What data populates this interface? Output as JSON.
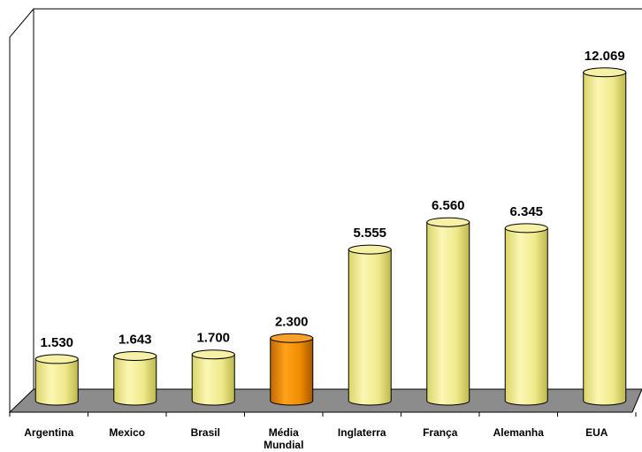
{
  "chart_data": {
    "type": "bar",
    "categories": [
      [
        "Argentina"
      ],
      [
        "Mexico"
      ],
      [
        "Brasil"
      ],
      [
        "Média",
        "Mundial"
      ],
      [
        "Inglaterra"
      ],
      [
        "França"
      ],
      [
        "Alemanha"
      ],
      [
        "EUA"
      ]
    ],
    "values": [
      1530,
      1643,
      1700,
      2300,
      5555,
      6560,
      6345,
      12069
    ],
    "value_labels": [
      "1.530",
      "1.643",
      "1.700",
      "2.300",
      "5.555",
      "6.560",
      "6.345",
      "12.069"
    ],
    "highlight_index": 3,
    "colors": {
      "bar": "#f2ed8c",
      "bar_highlight": "#ee8e00",
      "floor": "#8c8c8c",
      "axis": "#000000"
    },
    "title": "",
    "xlabel": "",
    "ylabel": "",
    "ylim": [
      0,
      13000
    ],
    "grid": false,
    "legend": "none"
  }
}
